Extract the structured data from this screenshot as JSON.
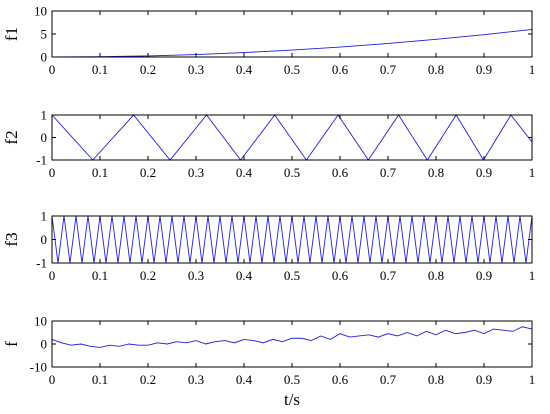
{
  "chart_data": [
    {
      "type": "line",
      "ylabel": "f1",
      "xlim": [
        0,
        1
      ],
      "ylim": [
        0,
        10
      ],
      "xticks": [
        "0",
        "0.1",
        "0.2",
        "0.3",
        "0.4",
        "0.5",
        "0.6",
        "0.7",
        "0.8",
        "0.9",
        "1"
      ],
      "yticks": [
        "0",
        "5",
        "10"
      ],
      "grid": false,
      "series": [
        {
          "x": [
            0,
            0.1,
            0.2,
            0.3,
            0.4,
            0.5,
            0.6,
            0.7,
            0.8,
            0.9,
            1.0
          ],
          "y": [
            0,
            0.06,
            0.24,
            0.54,
            0.96,
            1.5,
            2.16,
            2.94,
            3.84,
            4.86,
            6.0
          ]
        }
      ]
    },
    {
      "type": "line",
      "ylabel": "f2",
      "xlim": [
        0,
        1
      ],
      "ylim": [
        -1,
        1
      ],
      "xticks": [
        "0",
        "0.1",
        "0.2",
        "0.3",
        "0.4",
        "0.5",
        "0.6",
        "0.7",
        "0.8",
        "0.9",
        "1"
      ],
      "yticks": [
        "-1",
        "0",
        "1"
      ],
      "grid": false,
      "series": [
        {
          "x": [
            0,
            0.085,
            0.17,
            0.246,
            0.322,
            0.393,
            0.464,
            0.53,
            0.596,
            0.659,
            0.722,
            0.782,
            0.842,
            0.899,
            0.956,
            1.0
          ],
          "y": [
            1,
            -1,
            1,
            -1,
            1,
            -1,
            1,
            -1,
            1,
            -1,
            1,
            -1,
            1,
            -1,
            1,
            -0.2
          ]
        }
      ]
    },
    {
      "type": "line",
      "ylabel": "f3",
      "xlim": [
        0,
        1
      ],
      "ylim": [
        -1,
        1
      ],
      "xticks": [
        "0",
        "0.1",
        "0.2",
        "0.3",
        "0.4",
        "0.5",
        "0.6",
        "0.7",
        "0.8",
        "0.9",
        "1"
      ],
      "yticks": [
        "-1",
        "0",
        "1"
      ],
      "grid": false,
      "series": [
        {
          "x": [
            0,
            0.0125,
            0.025,
            0.0375,
            0.05,
            0.0625,
            0.075,
            0.0875,
            0.1,
            0.1125,
            0.125,
            0.1375,
            0.15,
            0.1625,
            0.175,
            0.1875,
            0.2,
            0.2125,
            0.225,
            0.2375,
            0.25,
            0.2625,
            0.275,
            0.2875,
            0.3,
            0.3125,
            0.325,
            0.3375,
            0.35,
            0.3625,
            0.375,
            0.3875,
            0.4,
            0.4125,
            0.425,
            0.4375,
            0.45,
            0.4625,
            0.475,
            0.4875,
            0.5,
            0.5125,
            0.525,
            0.5375,
            0.55,
            0.5625,
            0.575,
            0.5875,
            0.6,
            0.6125,
            0.625,
            0.6375,
            0.65,
            0.6625,
            0.675,
            0.6875,
            0.7,
            0.7125,
            0.725,
            0.7375,
            0.75,
            0.7625,
            0.775,
            0.7875,
            0.8,
            0.8125,
            0.825,
            0.8375,
            0.85,
            0.8625,
            0.875,
            0.8875,
            0.9,
            0.9125,
            0.925,
            0.9375,
            0.95,
            0.9625,
            0.975,
            0.9875,
            1.0
          ],
          "y": [
            1,
            -1,
            1,
            -1,
            1,
            -1,
            1,
            -1,
            1,
            -1,
            1,
            -1,
            1,
            -1,
            1,
            -1,
            1,
            -1,
            1,
            -1,
            1,
            -1,
            1,
            -1,
            1,
            -1,
            1,
            -1,
            1,
            -1,
            1,
            -1,
            1,
            -1,
            1,
            -1,
            1,
            -1,
            1,
            -1,
            1,
            -1,
            1,
            -1,
            1,
            -1,
            1,
            -1,
            1,
            -1,
            1,
            -1,
            1,
            -1,
            1,
            -1,
            1,
            -1,
            1,
            -1,
            1,
            -1,
            1,
            -1,
            1,
            -1,
            1,
            -1,
            1,
            -1,
            1,
            -1,
            1,
            -1,
            1,
            -1,
            1,
            -1,
            1,
            -1,
            1
          ]
        }
      ]
    },
    {
      "type": "line",
      "ylabel": "f",
      "xlabel": "t/s",
      "xlim": [
        0,
        1
      ],
      "ylim": [
        -10,
        10
      ],
      "xticks": [
        "0",
        "0.1",
        "0.2",
        "0.3",
        "0.4",
        "0.5",
        "0.6",
        "0.7",
        "0.8",
        "0.9",
        "1"
      ],
      "yticks": [
        "-10",
        "0",
        "10"
      ],
      "grid": false,
      "series": [
        {
          "x": [
            0,
            0.02,
            0.04,
            0.06,
            0.08,
            0.1,
            0.12,
            0.14,
            0.16,
            0.18,
            0.2,
            0.22,
            0.24,
            0.26,
            0.28,
            0.3,
            0.32,
            0.34,
            0.36,
            0.38,
            0.4,
            0.42,
            0.44,
            0.46,
            0.48,
            0.5,
            0.52,
            0.54,
            0.56,
            0.58,
            0.6,
            0.62,
            0.64,
            0.66,
            0.68,
            0.7,
            0.72,
            0.74,
            0.76,
            0.78,
            0.8,
            0.82,
            0.84,
            0.86,
            0.88,
            0.9,
            0.92,
            0.94,
            0.96,
            0.98,
            1.0
          ],
          "y": [
            2,
            0.5,
            -0.5,
            0,
            -1,
            -1.5,
            -0.5,
            -1,
            0,
            -0.5,
            -0.5,
            0.5,
            0,
            1,
            0.5,
            1.5,
            0,
            1,
            1.5,
            0.5,
            2,
            1.5,
            0.5,
            2,
            1,
            2.5,
            2.5,
            1.5,
            3.5,
            2,
            4.5,
            3,
            3.5,
            4,
            3,
            4.5,
            3.5,
            5,
            3.5,
            5.5,
            4,
            6,
            4.5,
            5,
            6,
            4.5,
            6.5,
            6,
            5.5,
            7.5,
            6.5
          ]
        }
      ]
    }
  ]
}
